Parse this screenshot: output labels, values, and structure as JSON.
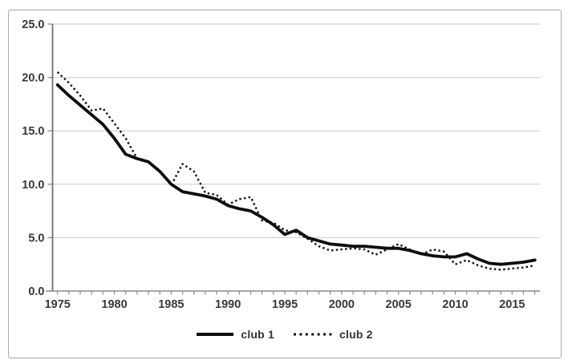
{
  "chart_data": {
    "type": "line",
    "title": "",
    "xlabel": "",
    "ylabel": "",
    "x": [
      1975,
      1976,
      1977,
      1978,
      1979,
      1980,
      1981,
      1982,
      1983,
      1984,
      1985,
      1986,
      1987,
      1988,
      1989,
      1990,
      1991,
      1992,
      1993,
      1994,
      1995,
      1996,
      1997,
      1998,
      1999,
      2000,
      2001,
      2002,
      2003,
      2004,
      2005,
      2006,
      2007,
      2008,
      2009,
      2010,
      2011,
      2012,
      2013,
      2014,
      2015,
      2016,
      2017
    ],
    "series": [
      {
        "name": "club 1",
        "line_style": "solid",
        "color": "#0d0d0d",
        "values": [
          19.3,
          18.3,
          17.4,
          16.5,
          15.6,
          14.3,
          12.8,
          12.4,
          12.1,
          11.2,
          10.0,
          9.3,
          9.1,
          8.9,
          8.6,
          8.0,
          7.7,
          7.5,
          6.9,
          6.2,
          5.3,
          5.7,
          5.0,
          4.7,
          4.4,
          4.3,
          4.2,
          4.2,
          4.1,
          4.0,
          4.0,
          3.8,
          3.5,
          3.3,
          3.2,
          3.2,
          3.5,
          3.0,
          2.6,
          2.5,
          2.6,
          2.7,
          2.9
        ]
      },
      {
        "name": "club 2",
        "line_style": "dotted",
        "color": "#0d0d0d",
        "values": [
          20.5,
          19.5,
          18.3,
          16.9,
          17.1,
          15.7,
          14.3,
          12.4,
          12.1,
          11.3,
          9.9,
          11.9,
          11.2,
          9.2,
          9.0,
          8.1,
          8.6,
          8.8,
          6.6,
          6.4,
          5.7,
          5.5,
          4.9,
          4.2,
          3.8,
          3.9,
          4.0,
          3.9,
          3.4,
          3.9,
          4.4,
          3.9,
          3.4,
          3.9,
          3.7,
          2.5,
          2.9,
          2.4,
          2.1,
          2.0,
          2.1,
          2.2,
          2.4
        ]
      }
    ],
    "ylim": [
      0.0,
      25.0
    ],
    "y_ticks": [
      0,
      5,
      10,
      15,
      20,
      25
    ],
    "y_tick_labels": [
      "0.0",
      "5.0",
      "10.0",
      "15.0",
      "20.0",
      "25.0"
    ],
    "x_major_ticks": [
      1975,
      1980,
      1985,
      1990,
      1995,
      2000,
      2005,
      2010,
      2015
    ],
    "x_minor_tick_interval_years": 1,
    "grid": "horizontal-only",
    "legend_position": "bottom-center",
    "colors": {
      "axis": "#8c8c8c",
      "grid": "#c9c9c9",
      "tick_labels": "#383838",
      "frame": "#ababab",
      "background": "#ffffff"
    }
  }
}
